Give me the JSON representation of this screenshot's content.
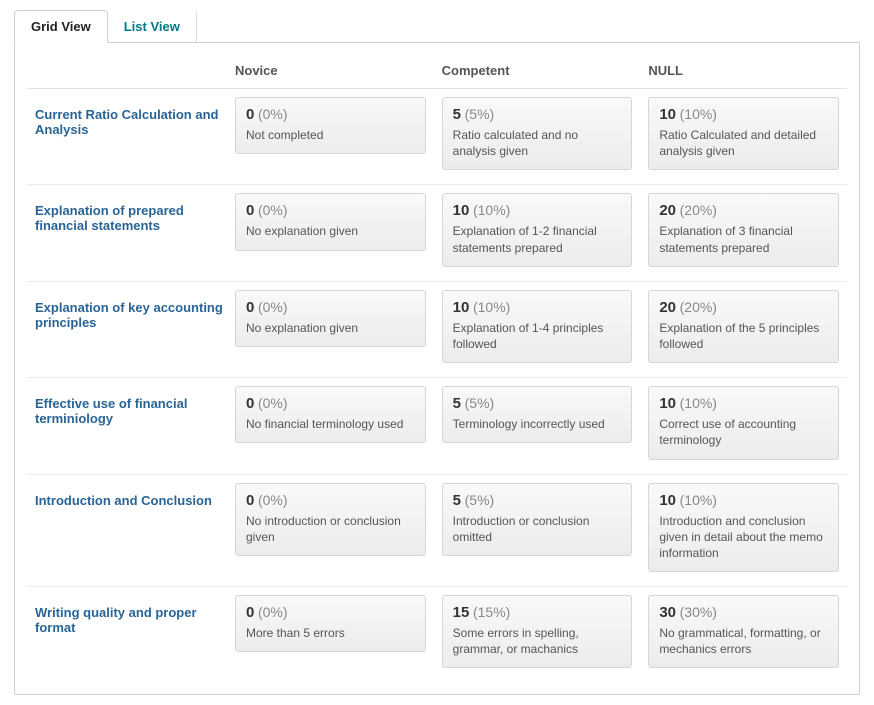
{
  "tabs": {
    "grid": "Grid View",
    "list": "List View",
    "active": 0
  },
  "columns": [
    "Novice",
    "Competent",
    "NULL"
  ],
  "criteria_label_color": "#2a6496",
  "cell_bg_top": "#f9f9f9",
  "cell_bg_bottom": "#ececec",
  "rows": [
    {
      "criterion": "Current Ratio Calculation and Analysis",
      "cells": [
        {
          "points": "0",
          "percent": "(0%)",
          "desc": "Not completed"
        },
        {
          "points": "5",
          "percent": "(5%)",
          "desc": "Ratio calculated and no analysis given"
        },
        {
          "points": "10",
          "percent": "(10%)",
          "desc": "Ratio Calculated and detailed analysis given"
        }
      ]
    },
    {
      "criterion": "Explanation of prepared financial statements",
      "cells": [
        {
          "points": "0",
          "percent": "(0%)",
          "desc": "No explanation given"
        },
        {
          "points": "10",
          "percent": "(10%)",
          "desc": "Explanation of 1-2 financial statements prepared"
        },
        {
          "points": "20",
          "percent": "(20%)",
          "desc": "Explanation of 3 financial statements prepared"
        }
      ]
    },
    {
      "criterion": "Explanation of key accounting principles",
      "cells": [
        {
          "points": "0",
          "percent": "(0%)",
          "desc": "No explanation given"
        },
        {
          "points": "10",
          "percent": "(10%)",
          "desc": "Explanation of 1-4 principles followed"
        },
        {
          "points": "20",
          "percent": "(20%)",
          "desc": "Explanation of the 5 principles followed"
        }
      ]
    },
    {
      "criterion": "Effective use of financial terminiology",
      "cells": [
        {
          "points": "0",
          "percent": "(0%)",
          "desc": "No financial terminology used"
        },
        {
          "points": "5",
          "percent": "(5%)",
          "desc": "Terminology incorrectly used"
        },
        {
          "points": "10",
          "percent": "(10%)",
          "desc": "Correct use of accounting terminology"
        }
      ]
    },
    {
      "criterion": "Introduction and Conclusion",
      "cells": [
        {
          "points": "0",
          "percent": "(0%)",
          "desc": "No introduction or conclusion given"
        },
        {
          "points": "5",
          "percent": "(5%)",
          "desc": "Introduction or conclusion omitted"
        },
        {
          "points": "10",
          "percent": "(10%)",
          "desc": "Introduction and conclusion given in detail about the memo information"
        }
      ]
    },
    {
      "criterion": "Writing quality and proper format",
      "cells": [
        {
          "points": "0",
          "percent": "(0%)",
          "desc": "More than 5 errors"
        },
        {
          "points": "15",
          "percent": "(15%)",
          "desc": "Some errors in spelling, grammar, or machanics"
        },
        {
          "points": "30",
          "percent": "(30%)",
          "desc": "No grammatical, formatting, or mechanics errors"
        }
      ]
    }
  ]
}
